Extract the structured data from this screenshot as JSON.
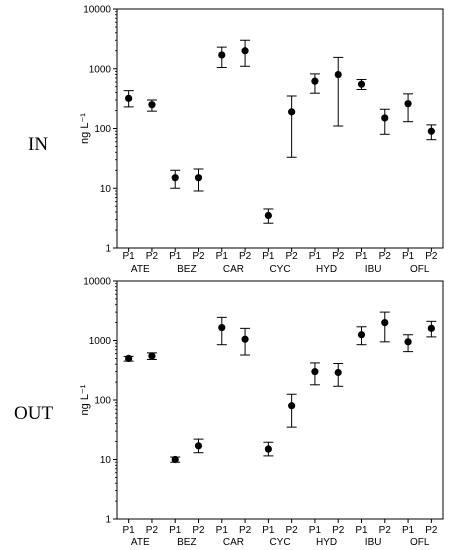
{
  "chart_data": [
    {
      "type": "scatter",
      "panel_label": "IN",
      "ylabel": "ng L⁻¹",
      "yscale": "log",
      "ylim": [
        1,
        10000
      ],
      "yticks": [
        "1",
        "10",
        "100",
        "1000",
        "10000"
      ],
      "x_labels": [
        "P1",
        "P2",
        "P1",
        "P2",
        "P1",
        "P2",
        "P1",
        "P2",
        "P1",
        "P2",
        "P1",
        "P2",
        "P1",
        "P2"
      ],
      "groups": [
        "ATE",
        "BEZ",
        "CAR",
        "CYC",
        "HYD",
        "IBU",
        "OFL"
      ],
      "values": [
        320,
        250,
        15,
        15,
        1700,
        2000,
        3.5,
        190,
        620,
        800,
        550,
        150,
        260,
        90
      ],
      "error_low": [
        230,
        195,
        10,
        9,
        1050,
        1100,
        2.6,
        33,
        390,
        110,
        450,
        80,
        130,
        65
      ],
      "error_high": [
        430,
        300,
        20,
        21,
        2300,
        3000,
        4.5,
        350,
        820,
        1550,
        660,
        210,
        380,
        115
      ],
      "grid": false
    },
    {
      "type": "scatter",
      "panel_label": "OUT",
      "ylabel": "ng L⁻¹",
      "yscale": "log",
      "ylim": [
        1,
        10000
      ],
      "yticks": [
        "1",
        "10",
        "100",
        "1000",
        "10000"
      ],
      "x_labels": [
        "P1",
        "P2",
        "P1",
        "P2",
        "P1",
        "P2",
        "P1",
        "P2",
        "P1",
        "P2",
        "P1",
        "P2",
        "P1",
        "P2"
      ],
      "groups": [
        "ATE",
        "BEZ",
        "CAR",
        "CYC",
        "HYD",
        "IBU",
        "OFL"
      ],
      "values": [
        500,
        550,
        10,
        17,
        1650,
        1050,
        15,
        80,
        300,
        290,
        1250,
        2000,
        950,
        1600
      ],
      "error_low": [
        450,
        480,
        9,
        13,
        850,
        570,
        11.5,
        35,
        180,
        170,
        850,
        950,
        650,
        1150
      ],
      "error_high": [
        540,
        620,
        11,
        22,
        2450,
        1600,
        19.5,
        125,
        420,
        410,
        1700,
        3000,
        1250,
        2100
      ],
      "grid": false
    }
  ]
}
